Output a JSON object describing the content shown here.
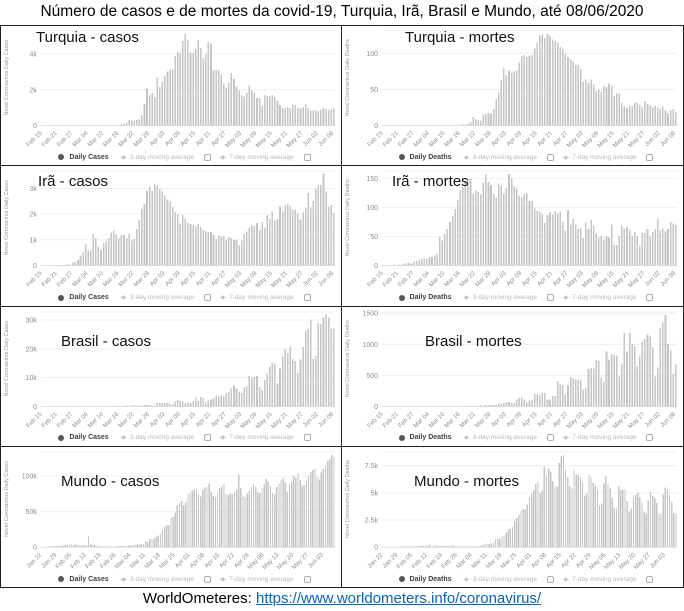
{
  "title": "Número de casos e de mortes da covid-19, Turquia, Irã, Brasil e Mundo, até 08/06/2020",
  "footer": {
    "source_label": "WorldOmeteres:",
    "link": "https://www.worldometers.info/coronavirus/"
  },
  "legend": {
    "ma3": "3-day moving average",
    "ma7": "7-day moving average"
  },
  "chart_data": [
    {
      "type": "bar",
      "label": "Turquia - casos",
      "ylabel": "Novel Coronavirus Daily Cases",
      "legend_series": "Daily Cases",
      "ymax": 5300,
      "yticks": [
        {
          "v": 0,
          "t": "0"
        },
        {
          "v": 2000,
          "t": "2k"
        },
        {
          "v": 4000,
          "t": "4k"
        }
      ],
      "x_tick_every": 6,
      "x_tick_labels": [
        "Feb 15",
        "Feb 21",
        "Feb 27",
        "Mar 04",
        "Mar 10",
        "Mar 16",
        "Mar 22",
        "Mar 28",
        "Apr 03",
        "Apr 09",
        "Apr 15",
        "Apr 21",
        "Apr 27",
        "May 03",
        "May 09",
        "May 15",
        "May 21",
        "May 27",
        "Jun 02",
        "Jun 08"
      ],
      "values": [
        0,
        0,
        0,
        0,
        0,
        0,
        0,
        0,
        0,
        0,
        0,
        0,
        0,
        0,
        0,
        0,
        0,
        0,
        0,
        0,
        0,
        0,
        0,
        0,
        0,
        0,
        0,
        0,
        0,
        0,
        0,
        51,
        93,
        168,
        311,
        277,
        289,
        293,
        343,
        561,
        1196,
        2069,
        1704,
        1815,
        1610,
        2704,
        2148,
        2456,
        2786,
        3013,
        3135,
        3148,
        3892,
        4117,
        4056,
        4747,
        5138,
        4789,
        4093,
        4062,
        4281,
        4801,
        4353,
        3783,
        3977,
        4674,
        4611,
        3083,
        3116,
        3122,
        2861,
        2357,
        2131,
        2392,
        2936,
        2615,
        2188,
        1983,
        1670,
        1614,
        1832,
        2253,
        1977,
        1848,
        1546,
        1542,
        1114,
        1704,
        1639,
        1635,
        1708,
        1610,
        1368,
        1158,
        972,
        961,
        1041,
        952,
        1186,
        1141,
        987,
        948,
        1035,
        1182,
        983,
        839,
        827,
        839,
        786,
        867,
        988,
        930,
        878,
        906,
        993
      ]
    },
    {
      "type": "bar",
      "label": "Turquia - mortes",
      "ylabel": "Novel Coronavirus Daily Deaths",
      "legend_series": "Daily Deaths",
      "ymax": 131,
      "yticks": [
        {
          "v": 0,
          "t": "0"
        },
        {
          "v": 50,
          "t": "50"
        },
        {
          "v": 100,
          "t": "100"
        }
      ],
      "x_tick_every": 6,
      "x_tick_labels": [
        "Feb 15",
        "Feb 21",
        "Feb 27",
        "Mar 04",
        "Mar 10",
        "Mar 16",
        "Mar 22",
        "Mar 28",
        "Apr 03",
        "Apr 09",
        "Apr 15",
        "Apr 21",
        "Apr 27",
        "May 03",
        "May 09",
        "May 15",
        "May 21",
        "May 27",
        "Jun 02",
        "Jun 08"
      ],
      "values": [
        0,
        0,
        0,
        0,
        0,
        0,
        0,
        0,
        0,
        0,
        0,
        0,
        0,
        0,
        0,
        0,
        0,
        0,
        0,
        0,
        0,
        0,
        0,
        0,
        0,
        0,
        0,
        0,
        0,
        0,
        0,
        1,
        1,
        2,
        5,
        12,
        9,
        7,
        7,
        15,
        16,
        17,
        16,
        23,
        37,
        46,
        63,
        79,
        69,
        76,
        73,
        75,
        76,
        87,
        96,
        98,
        95,
        97,
        98,
        107,
        115,
        125,
        126,
        121,
        127,
        123,
        119,
        117,
        115,
        109,
        106,
        99,
        95,
        92,
        89,
        84,
        84,
        78,
        61,
        64,
        59,
        64,
        57,
        48,
        50,
        47,
        55,
        53,
        58,
        55,
        41,
        44,
        44,
        32,
        27,
        24,
        28,
        27,
        32,
        32,
        29,
        25,
        34,
        30,
        28,
        25,
        28,
        25,
        23,
        26,
        21,
        17,
        21,
        23,
        19
      ]
    },
    {
      "type": "bar",
      "label": "Irã - casos",
      "ylabel": "Novel Coronavirus Daily Cases",
      "legend_series": "Daily Cases",
      "ymax": 3680,
      "yticks": [
        {
          "v": 0,
          "t": "0"
        },
        {
          "v": 1000,
          "t": "1k"
        },
        {
          "v": 2000,
          "t": "2k"
        },
        {
          "v": 3000,
          "t": "3k"
        }
      ],
      "x_tick_every": 6,
      "x_tick_labels": [
        "Feb 15",
        "Feb 21",
        "Feb 27",
        "Mar 04",
        "Mar 10",
        "Mar 16",
        "Mar 22",
        "Mar 28",
        "Apr 03",
        "Apr 09",
        "Apr 15",
        "Apr 21",
        "Apr 27",
        "May 03",
        "May 09",
        "May 15",
        "May 21",
        "May 27",
        "Jun 02",
        "Jun 08"
      ],
      "values": [
        0,
        0,
        0,
        0,
        2,
        3,
        13,
        10,
        15,
        18,
        34,
        44,
        106,
        143,
        205,
        385,
        523,
        835,
        586,
        591,
        1234,
        1076,
        743,
        595,
        881,
        958,
        1075,
        1289,
        1365,
        1209,
        1053,
        1178,
        1192,
        1046,
        1237,
        966,
        1028,
        1411,
        1762,
        2206,
        2389,
        2926,
        3076,
        2901,
        3186,
        3111,
        2987,
        2875,
        2715,
        2560,
        2483,
        2274,
        2089,
        1997,
        1634,
        1972,
        1837,
        1657,
        1617,
        1574,
        1512,
        1606,
        1499,
        1374,
        1343,
        1294,
        1297,
        1194,
        1030,
        1168,
        1134,
        1153,
        991,
        1112,
        1073,
        983,
        1006,
        802,
        976,
        1223,
        1323,
        1485,
        1556,
        1529,
        1656,
        1383,
        1683,
        1481,
        1958,
        1808,
        2102,
        1757,
        1806,
        2294,
        2111,
        2346,
        2392,
        2311,
        2180,
        2180,
        2023,
        1787,
        2080,
        2258,
        2819,
        2282,
        2516,
        2979,
        3117,
        3134,
        3574,
        2886,
        2269,
        2364,
        2043
      ]
    },
    {
      "type": "bar",
      "label": "Irã - mortes",
      "ylabel": "Novel Coronavirus Daily Deaths",
      "legend_series": "Daily Deaths",
      "ymax": 163,
      "yticks": [
        {
          "v": 0,
          "t": "0"
        },
        {
          "v": 50,
          "t": "50"
        },
        {
          "v": 100,
          "t": "100"
        },
        {
          "v": 150,
          "t": "150"
        }
      ],
      "x_tick_every": 6,
      "x_tick_labels": [
        "Feb 15",
        "Feb 21",
        "Feb 27",
        "Mar 04",
        "Mar 10",
        "Mar 16",
        "Mar 22",
        "Mar 28",
        "Apr 03",
        "Apr 09",
        "Apr 15",
        "Apr 21",
        "Apr 27",
        "May 03",
        "May 09",
        "May 15",
        "May 21",
        "May 27",
        "Jun 02",
        "Jun 08"
      ],
      "values": [
        0,
        0,
        0,
        0,
        2,
        0,
        2,
        1,
        3,
        4,
        4,
        3,
        7,
        8,
        9,
        11,
        12,
        11,
        15,
        15,
        17,
        21,
        49,
        43,
        54,
        63,
        75,
        85,
        97,
        113,
        129,
        135,
        147,
        149,
        149,
        123,
        129,
        127,
        122,
        143,
        157,
        144,
        139,
        123,
        117,
        141,
        138,
        124,
        134,
        158,
        151,
        136,
        133,
        121,
        117,
        122,
        125,
        111,
        111,
        98,
        94,
        92,
        89,
        73,
        87,
        91,
        88,
        94,
        90,
        93,
        76,
        60,
        96,
        71,
        80,
        71,
        63,
        65,
        47,
        74,
        63,
        78,
        68,
        55,
        48,
        51,
        45,
        50,
        48,
        71,
        35,
        35,
        51,
        69,
        64,
        66,
        62,
        51,
        58,
        50,
        34,
        57,
        56,
        63,
        50,
        58,
        63,
        81,
        60,
        64,
        59,
        63,
        75,
        72,
        70
      ]
    },
    {
      "type": "bar",
      "label": "Brasil - casos",
      "ylabel": "Novel Coronavirus Daily Cases",
      "legend_series": "Daily Cases",
      "ymax": 32800,
      "yticks": [
        {
          "v": 0,
          "t": "0"
        },
        {
          "v": 10000,
          "t": "10k"
        },
        {
          "v": 20000,
          "t": "20k"
        },
        {
          "v": 30000,
          "t": "30k"
        }
      ],
      "x_tick_every": 6,
      "x_tick_labels": [
        "Feb 15",
        "Feb 21",
        "Feb 27",
        "Mar 04",
        "Mar 10",
        "Mar 16",
        "Mar 22",
        "Mar 28",
        "Apr 03",
        "Apr 09",
        "Apr 15",
        "Apr 21",
        "Apr 27",
        "May 03",
        "May 09",
        "May 15",
        "May 21",
        "May 27",
        "Jun 02",
        "Jun 08"
      ],
      "values": [
        0,
        0,
        0,
        0,
        0,
        0,
        0,
        0,
        0,
        0,
        0,
        1,
        0,
        0,
        1,
        0,
        0,
        0,
        1,
        1,
        9,
        6,
        6,
        5,
        9,
        18,
        25,
        44,
        30,
        79,
        34,
        57,
        193,
        283,
        224,
        310,
        545,
        342,
        310,
        232,
        482,
        502,
        487,
        352,
        323,
        1138,
        1119,
        1208,
        1146,
        1222,
        852,
        926,
        1661,
        2210,
        1930,
        1781,
        1089,
        1442,
        1261,
        1832,
        3058,
        2105,
        3257,
        2917,
        1389,
        2055,
        2498,
        2678,
        3735,
        3503,
        3898,
        3567,
        4613,
        4975,
        6276,
        7218,
        6209,
        4970,
        4588,
        6633,
        6935,
        10503,
        9888,
        10222,
        10611,
        6760,
        5632,
        9258,
        11385,
        13944,
        15305,
        14919,
        7938,
        13140,
        17408,
        19951,
        18508,
        20803,
        16508,
        15813,
        11687,
        16324,
        20599,
        26417,
        26928,
        30102,
        16409,
        17598,
        28936,
        28633,
        30925,
        31890,
        30830,
        27075,
        27000
      ]
    },
    {
      "type": "bar",
      "label": "Brasil - mortes",
      "ylabel": "Novel Coronavirus Daily Deaths",
      "legend_series": "Daily Deaths",
      "ymax": 1520,
      "yticks": [
        {
          "v": 0,
          "t": "0"
        },
        {
          "v": 500,
          "t": "500"
        },
        {
          "v": 1000,
          "t": "1000"
        },
        {
          "v": 1500,
          "t": "1500"
        }
      ],
      "x_tick_every": 6,
      "x_tick_labels": [
        "Feb 15",
        "Feb 21",
        "Feb 27",
        "Mar 04",
        "Mar 10",
        "Mar 16",
        "Mar 22",
        "Mar 28",
        "Apr 03",
        "Apr 09",
        "Apr 15",
        "Apr 21",
        "Apr 27",
        "May 03",
        "May 09",
        "May 15",
        "May 21",
        "May 27",
        "Jun 02",
        "Jun 08"
      ],
      "values": [
        0,
        0,
        0,
        0,
        0,
        0,
        0,
        0,
        0,
        0,
        0,
        0,
        0,
        0,
        0,
        0,
        0,
        0,
        0,
        0,
        0,
        0,
        0,
        0,
        0,
        0,
        0,
        0,
        0,
        0,
        0,
        1,
        3,
        3,
        4,
        7,
        9,
        9,
        12,
        11,
        20,
        15,
        22,
        22,
        23,
        42,
        39,
        58,
        60,
        73,
        54,
        67,
        114,
        133,
        141,
        115,
        68,
        99,
        105,
        204,
        204,
        188,
        217,
        216,
        115,
        113,
        166,
        165,
        407,
        357,
        346,
        189,
        338,
        474,
        449,
        435,
        428,
        421,
        275,
        296,
        600,
        615,
        610,
        751,
        730,
        467,
        396,
        881,
        749,
        844,
        824,
        816,
        485,
        674,
        1179,
        888,
        1188,
        1001,
        965,
        653,
        807,
        1039,
        1086,
        1156,
        1124,
        956,
        480,
        623,
        1262,
        1349,
        1473,
        1005,
        904,
        525,
        679
      ]
    },
    {
      "type": "bar",
      "label": "Mundo - casos",
      "ylabel": "Novel Coronavirus Daily Cases",
      "legend_series": "Daily Cases",
      "ymax": 134000,
      "yticks": [
        {
          "v": 0,
          "t": "0"
        },
        {
          "v": 50000,
          "t": "50k"
        },
        {
          "v": 100000,
          "t": "100k"
        }
      ],
      "x_tick_every": 7,
      "x_tick_labels": [
        "Jan 22",
        "Jan 29",
        "Feb 05",
        "Feb 12",
        "Feb 19",
        "Feb 26",
        "Mar 04",
        "Mar 11",
        "Mar 18",
        "Mar 25",
        "Apr 01",
        "Apr 08",
        "Apr 15",
        "Apr 22",
        "Apr 29",
        "May 06",
        "May 13",
        "May 20",
        "May 27",
        "Jun 03"
      ],
      "values": [
        441,
        265,
        468,
        703,
        786,
        1778,
        1482,
        1755,
        2010,
        2127,
        2603,
        2836,
        3239,
        3927,
        3743,
        3166,
        3439,
        2676,
        3002,
        2592,
        2036,
        2022,
        15136,
        4348,
        2704,
        2193,
        2130,
        1922,
        622,
        890,
        1027,
        1027,
        656,
        1028,
        921,
        1253,
        1399,
        1566,
        1882,
        2009,
        1992,
        2567,
        2434,
        2887,
        4019,
        4111,
        4110,
        4557,
        4789,
        7694,
        7359,
        11177,
        10991,
        12061,
        14814,
        16593,
        19610,
        24852,
        28651,
        30972,
        31060,
        40789,
        42790,
        49174,
        59636,
        62502,
        65347,
        58654,
        63143,
        74556,
        76085,
        79816,
        81508,
        82494,
        74493,
        71636,
        80698,
        83698,
        85054,
        89373,
        77836,
        72328,
        70828,
        77062,
        83013,
        85246,
        89218,
        75113,
        73639,
        75248,
        74553,
        77258,
        81081,
        102584,
        83499,
        72953,
        70872,
        75677,
        79250,
        84245,
        89726,
        84851,
        77766,
        76259,
        82838,
        89273,
        95936,
        92179,
        85107,
        76337,
        74992,
        84831,
        88761,
        93731,
        97475,
        90857,
        78398,
        88207,
        92830,
        100284,
        97742,
        104161,
        94470,
        87006,
        87361,
        92240,
        100780,
        105587,
        108593,
        111000,
        99000,
        95000,
        105000,
        110000,
        116000,
        121000,
        124000,
        130000,
        128000
      ]
    },
    {
      "type": "bar",
      "label": "Mundo - mortes",
      "ylabel": "Novel Coronavirus Daily Deaths",
      "legend_series": "Daily Deaths",
      "ymax": 8760,
      "yticks": [
        {
          "v": 0,
          "t": "0"
        },
        {
          "v": 2500,
          "t": "2.5k"
        },
        {
          "v": 5000,
          "t": "5k"
        },
        {
          "v": 7500,
          "t": "7.5k"
        }
      ],
      "x_tick_every": 7,
      "x_tick_labels": [
        "Jan 22",
        "Jan 29",
        "Feb 05",
        "Feb 12",
        "Feb 19",
        "Feb 26",
        "Mar 04",
        "Mar 11",
        "Mar 18",
        "Mar 25",
        "Apr 01",
        "Apr 08",
        "Apr 15",
        "Apr 22",
        "Apr 29",
        "May 06",
        "May 13",
        "May 20",
        "May 27",
        "Jun 03"
      ],
      "values": [
        17,
        8,
        16,
        15,
        24,
        26,
        26,
        38,
        43,
        46,
        45,
        58,
        64,
        66,
        72,
        73,
        73,
        86,
        89,
        97,
        108,
        97,
        254,
        13,
        144,
        142,
        106,
        98,
        139,
        115,
        109,
        112,
        150,
        160,
        71,
        52,
        44,
        47,
        57,
        58,
        67,
        72,
        84,
        80,
        102,
        99,
        116,
        204,
        271,
        330,
        315,
        342,
        438,
        709,
        756,
        793,
        976,
        1094,
        1365,
        1649,
        1687,
        1918,
        2398,
        2676,
        2975,
        3346,
        3502,
        3452,
        3910,
        4602,
        4920,
        5195,
        5806,
        6100,
        4981,
        5224,
        7404,
        6587,
        7262,
        6980,
        6106,
        5696,
        5601,
        7753,
        8340,
        8505,
        7106,
        6428,
        5637,
        5385,
        7105,
        6688,
        6662,
        6452,
        5962,
        4756,
        4956,
        6672,
        6527,
        5887,
        5640,
        5263,
        3849,
        4038,
        5875,
        6539,
        5808,
        5414,
        4576,
        3595,
        3572,
        5637,
        5276,
        5302,
        5305,
        4263,
        3273,
        3546,
        4747,
        4805,
        4969,
        4639,
        4126,
        3276,
        3114,
        4346,
        5070,
        4729,
        4509,
        4069,
        3068,
        3155,
        4869,
        5472,
        5287,
        4812,
        4164,
        3123,
        3119
      ]
    }
  ]
}
